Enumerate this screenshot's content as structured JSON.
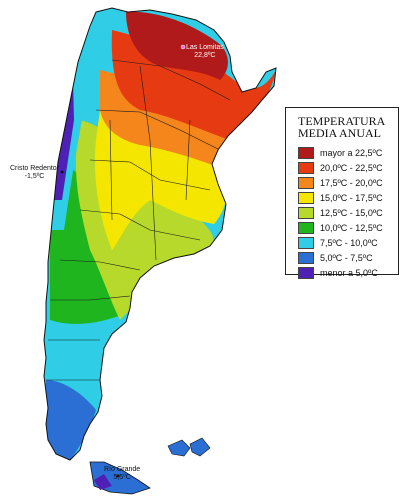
{
  "legend": {
    "title_line1": "TEMPERATURA",
    "title_line2": "MEDIA ANUAL",
    "items": [
      {
        "label": "mayor a 22,5ºC",
        "color": "#b11a1a"
      },
      {
        "label": "20,0ºC - 22,5ºC",
        "color": "#e63b12"
      },
      {
        "label": "17,5ºC - 20,0ºC",
        "color": "#f5861c"
      },
      {
        "label": "15,0ºC - 17,5ºC",
        "color": "#f5e600"
      },
      {
        "label": "12,5ºC - 15,0ºC",
        "color": "#b7d92b"
      },
      {
        "label": "10,0ºC - 12,5ºC",
        "color": "#1fb51f"
      },
      {
        "label": "7,5ºC - 10,0ºC",
        "color": "#30cde6"
      },
      {
        "label": "5,0ºC - 7,5ºC",
        "color": "#2c6fd4"
      },
      {
        "label": "menor a 5,0ºC",
        "color": "#4e20b6"
      }
    ]
  },
  "places": {
    "las_lomitas": {
      "name": "Las Lomitas",
      "value": "22,8ºC"
    },
    "cristo_redentor": {
      "name": "Cristo Redentor",
      "value": "-1,5ºC"
    },
    "rio_grande": {
      "name": "Río Grande",
      "value": "5,5ºC"
    }
  }
}
